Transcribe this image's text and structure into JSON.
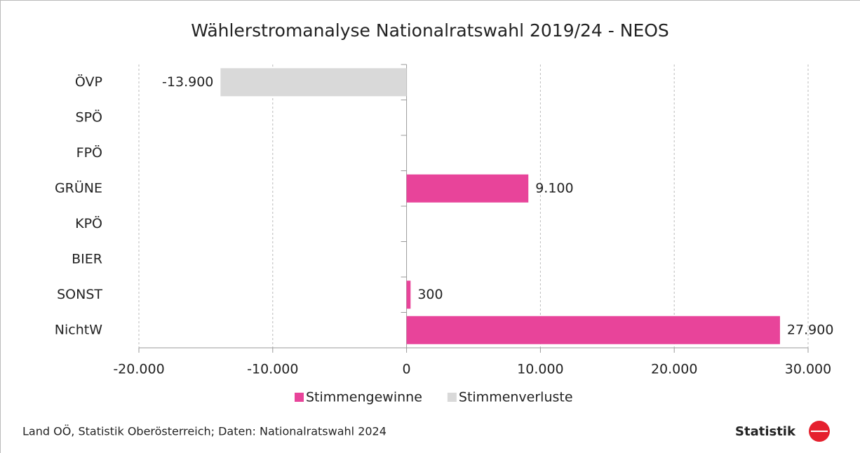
{
  "chart_data": {
    "type": "hbar",
    "title": "Wählerstromanalyse Nationalratswahl 2019/24 - NEOS",
    "categories": [
      "ÖVP",
      "SPÖ",
      "FPÖ",
      "GRÜNE",
      "KPÖ",
      "BIER",
      "SONST",
      "NichtW"
    ],
    "series": [
      {
        "name": "Stimmengewinne",
        "color": "#e8449a",
        "values": [
          null,
          null,
          null,
          9100,
          null,
          null,
          300,
          27900
        ],
        "value_labels": [
          null,
          null,
          null,
          "9.100",
          null,
          null,
          "300",
          "27.900"
        ]
      },
      {
        "name": "Stimmenverluste",
        "color": "#d9d9d9",
        "values": [
          -13900,
          null,
          null,
          null,
          null,
          null,
          null,
          null
        ],
        "value_labels": [
          "-13.900",
          null,
          null,
          null,
          null,
          null,
          null,
          null
        ]
      }
    ],
    "xlim": [
      -20000,
      30000
    ],
    "xticks": [
      {
        "value": -20000,
        "label": "-20.000"
      },
      {
        "value": -10000,
        "label": "-10.000"
      },
      0,
      {
        "value": 10000,
        "label": "10.000"
      },
      {
        "value": 20000,
        "label": "20.000"
      },
      {
        "value": 30000,
        "label": "30.000"
      }
    ],
    "grid": true,
    "legend": "bottom",
    "source": "Land OÖ, Statistik Oberösterreich; Daten: Nationalratswahl 2024",
    "logo": "Statistik"
  }
}
